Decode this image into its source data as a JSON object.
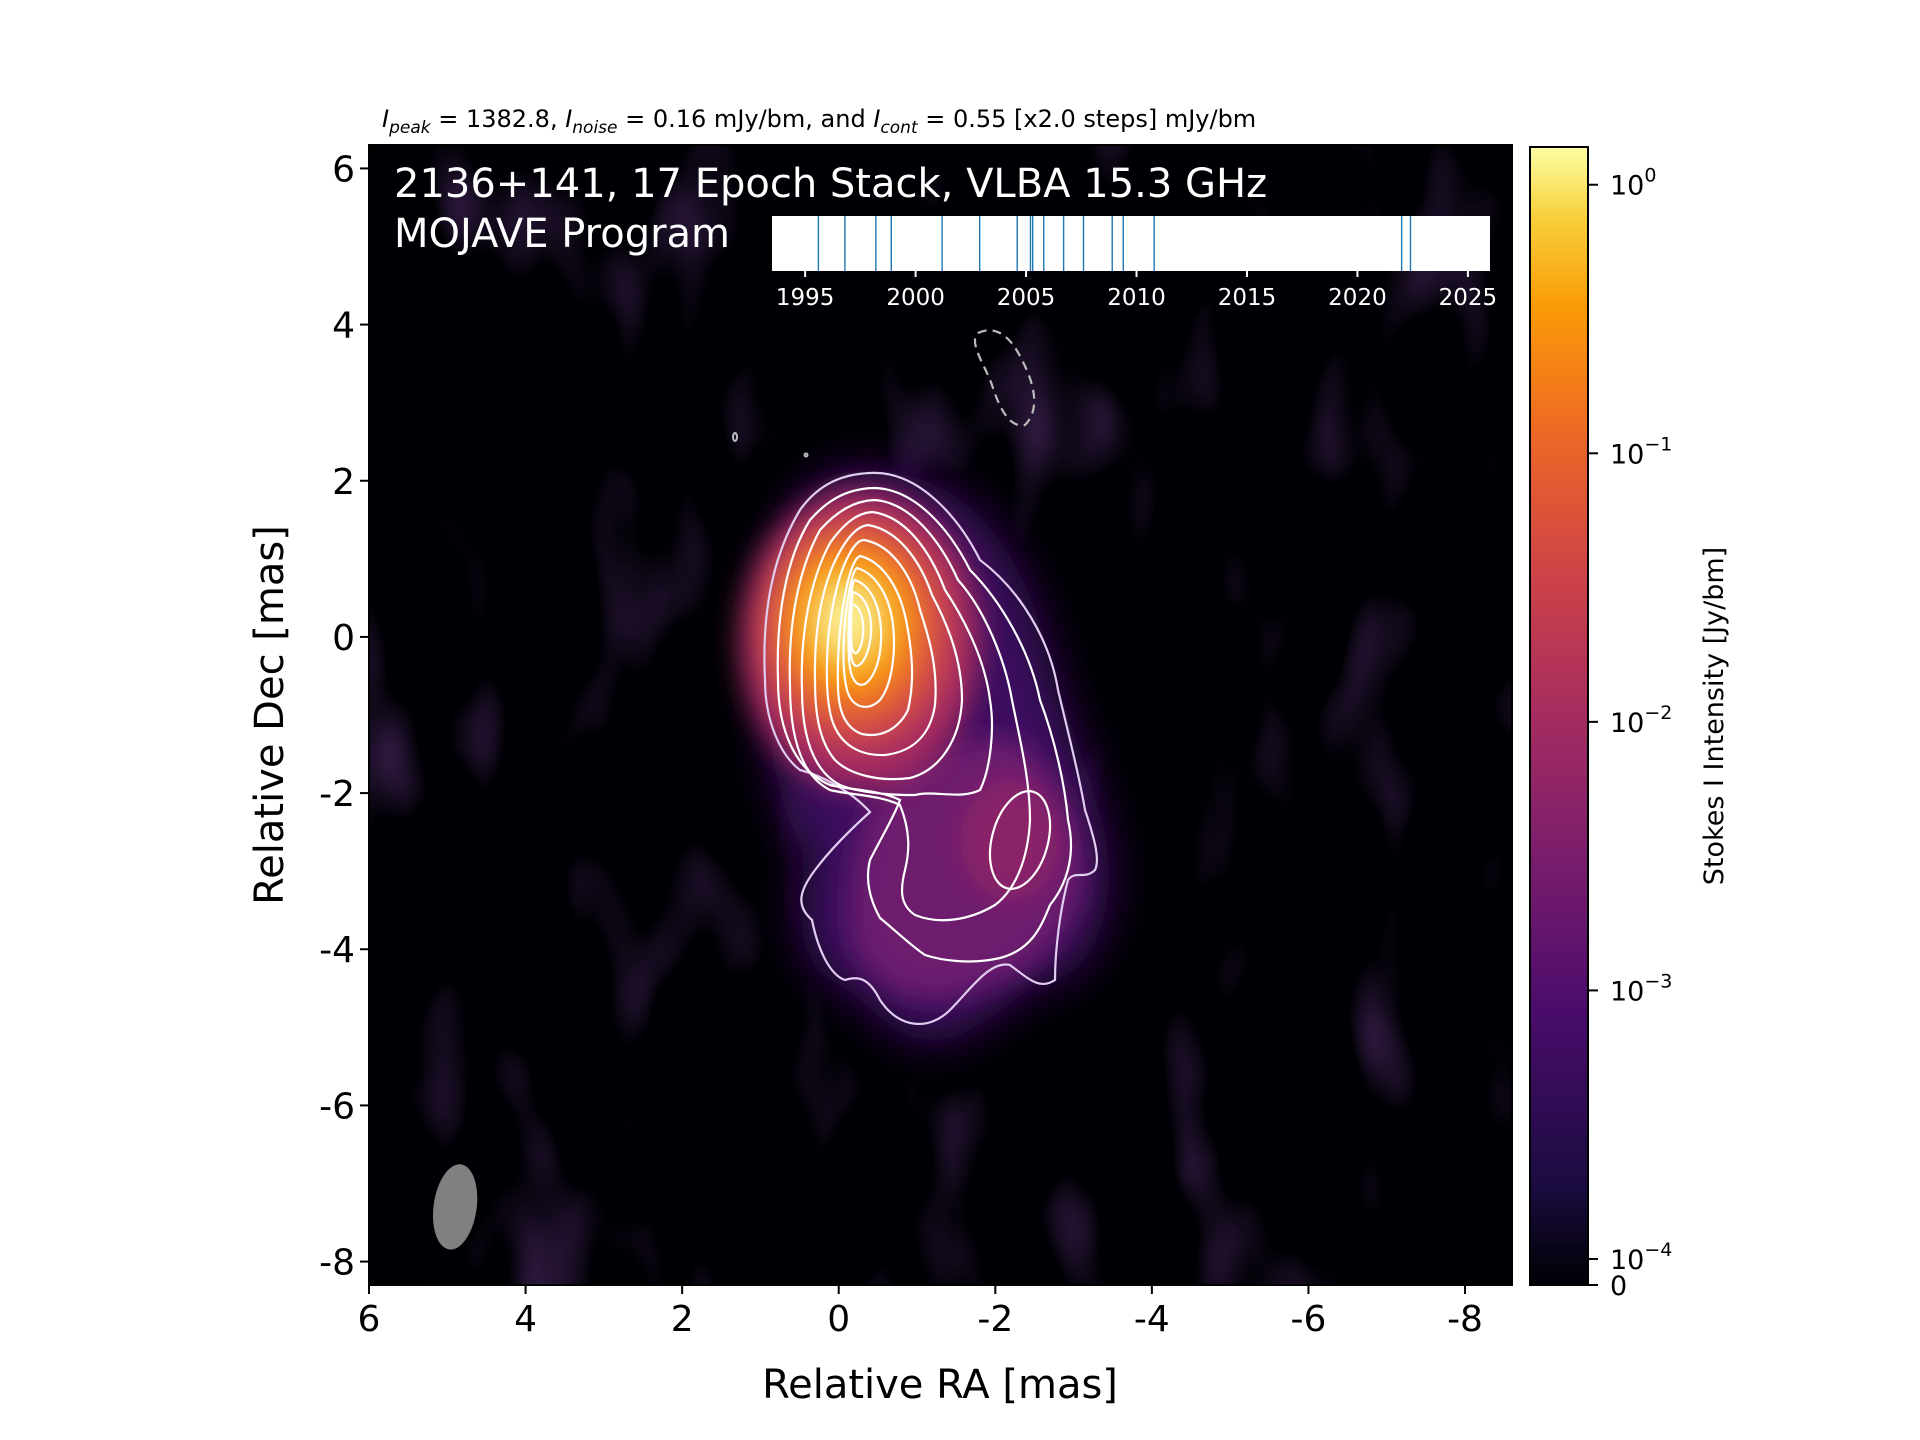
{
  "chart_data": {
    "type": "heatmap",
    "title": "2136+141, 17 Epoch Stack, VLBA 15.3 GHz",
    "subtitle": "MOJAVE Program",
    "header": {
      "peak_label": "I",
      "peak_sub": "peak",
      "peak_value": " = 1382.8, ",
      "noise_label": "I",
      "noise_sub": "noise",
      "noise_value": " = 0.16 mJy/bm, and ",
      "cont_label": "I",
      "cont_sub": "cont",
      "cont_value": " = 0.55 [x2.0 steps] mJy/bm"
    },
    "xlabel": "Relative RA [mas]",
    "ylabel": "Relative Dec [mas]",
    "xlim": [
      6,
      -8.6
    ],
    "ylim": [
      -8.3,
      6.3
    ],
    "xticks": [
      6,
      4,
      2,
      0,
      -2,
      -4,
      -6,
      -8
    ],
    "yticks": [
      6,
      4,
      2,
      0,
      -2,
      -4,
      -6,
      -8
    ],
    "colorbar": {
      "label": "Stokes I Intensity [Jy/bm]",
      "scale": "log",
      "colormap": "inferno",
      "range": [
        0,
        1.382
      ],
      "ticks": [
        {
          "value": 1,
          "base": "10",
          "exp": "0"
        },
        {
          "value": 0.1,
          "base": "10",
          "exp": "−1"
        },
        {
          "value": 0.01,
          "base": "10",
          "exp": "−2"
        },
        {
          "value": 0.001,
          "base": "10",
          "exp": "−3"
        },
        {
          "value": 0.0001,
          "base": "10",
          "exp": "−4"
        },
        {
          "value": 0,
          "base": "0",
          "exp": ""
        }
      ]
    },
    "peak_intensity_mJy": 1382.8,
    "noise_mJy": 0.16,
    "contour_base_mJy": 0.55,
    "contour_step": 2.0,
    "core_position_mas": [
      0,
      0
    ],
    "beam": {
      "ra": 4.9,
      "dec": -7.3,
      "major_mas": 1.1,
      "minor_mas": 0.55,
      "pa_deg": -8
    },
    "epoch_timeline": {
      "xlim": [
        1993.5,
        2026
      ],
      "ticks": [
        1995,
        2000,
        2005,
        2010,
        2015,
        2020,
        2025
      ],
      "epochs": [
        1995.6,
        1996.8,
        1998.2,
        1998.9,
        2001.2,
        2002.9,
        2004.6,
        2005.2,
        2005.3,
        2005.8,
        2006.7,
        2007.6,
        2008.9,
        2009.4,
        2010.8,
        2022.0,
        2022.4
      ]
    },
    "grid": false
  },
  "colors": {
    "background": "#000004",
    "contour": "#ffffff",
    "negative_contour": "#bbbbbb",
    "beam": "#808080",
    "epoch_line": "#1f77b4"
  }
}
